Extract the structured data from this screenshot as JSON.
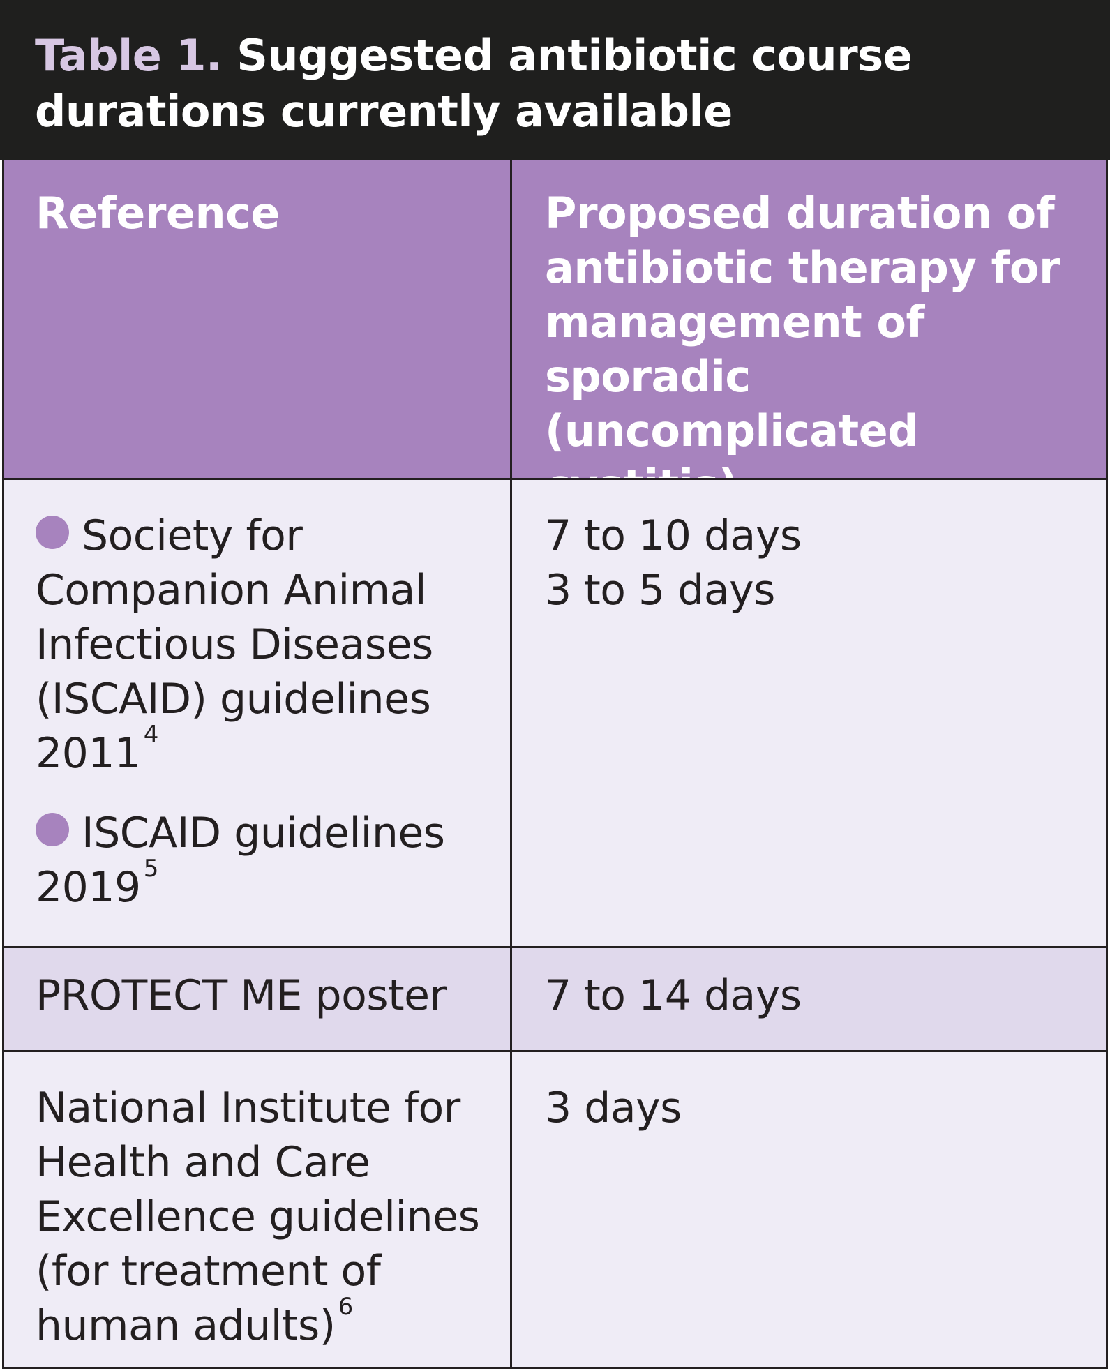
{
  "caption": {
    "label": "Table 1.",
    "title": "Suggested antibiotic course durations currently available"
  },
  "headers": {
    "reference": "Reference",
    "duration": "Proposed duration of antibiotic therapy for management of sporadic (uncomplicated cystitis)"
  },
  "rows": [
    {
      "references": [
        {
          "text": "Society for Companion Animal Infectious Diseases (ISCAID) guidelines 2011",
          "sup": "4",
          "bullet": true
        },
        {
          "text": "ISCAID guidelines 2019",
          "sup": "5",
          "bullet": true
        }
      ],
      "durations": [
        "7 to 10 days",
        "3 to 5 days"
      ]
    },
    {
      "references": [
        {
          "text": "PROTECT ME poster",
          "sup": "",
          "bullet": false
        }
      ],
      "durations": [
        "7 to 14 days"
      ]
    },
    {
      "references": [
        {
          "text": "National Institute for Health and Care Excellence guidelines (for treatment of human adults)",
          "sup": "6",
          "bullet": false
        }
      ],
      "durations": [
        "3 days"
      ]
    }
  ],
  "colors": {
    "caption_bg": "#1f1f1e",
    "caption_label": "#d7c7e3",
    "header_bg": "#a783be",
    "row_light": "#efecf6",
    "row_mid": "#e0d9ec",
    "bullet": "#a783be",
    "rule": "#231f20"
  }
}
